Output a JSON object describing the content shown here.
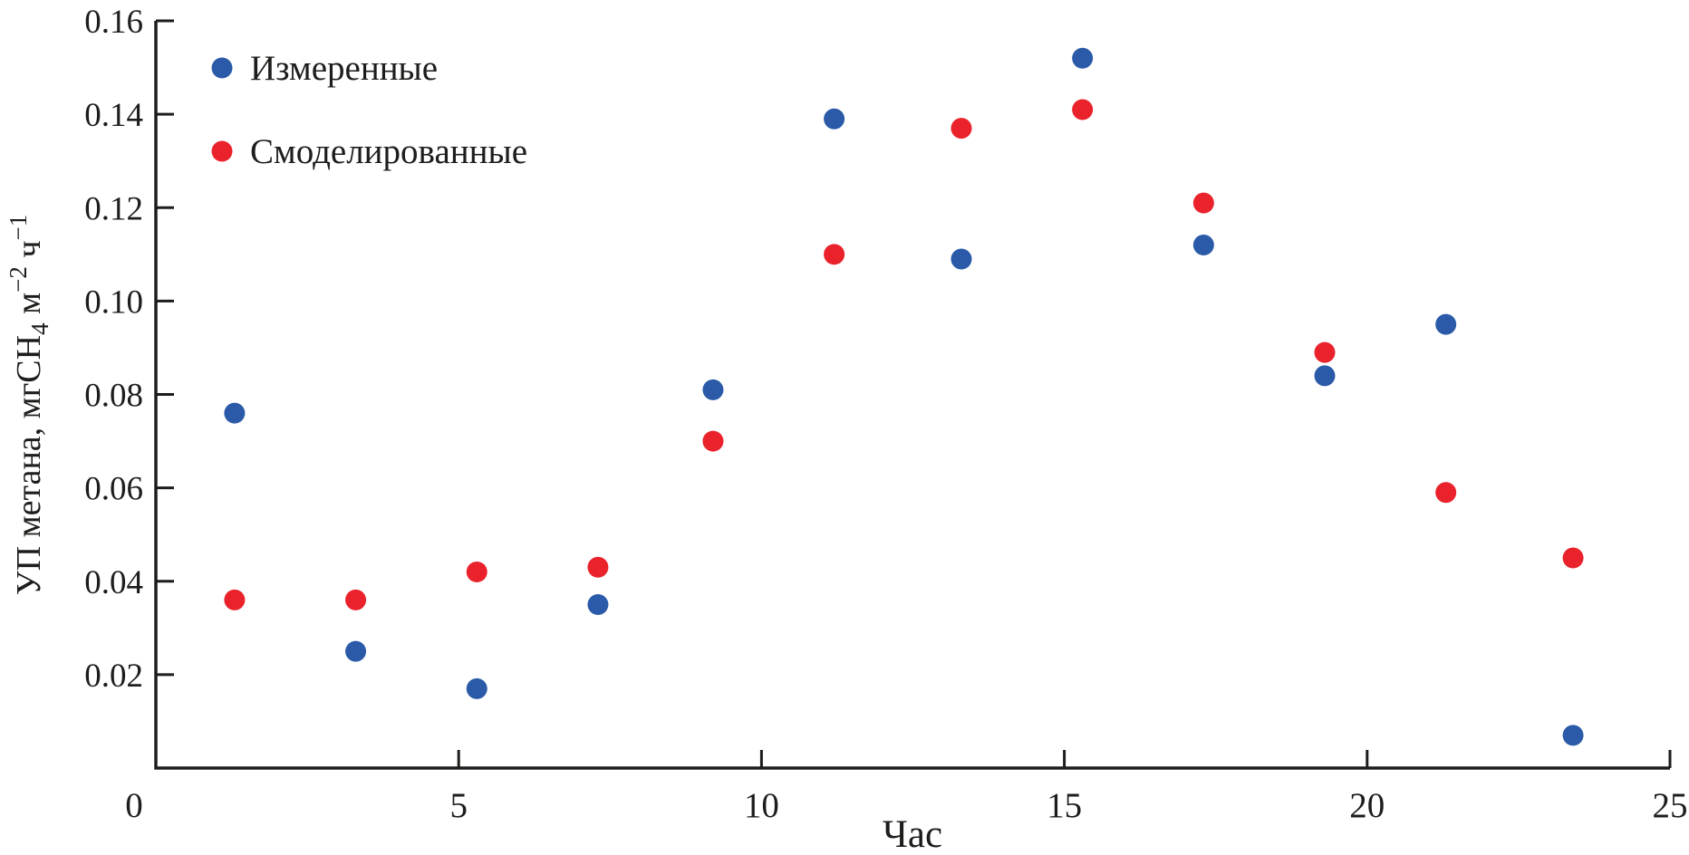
{
  "figure": {
    "background": "#ffffff",
    "ink_color": "#1d1d1b"
  },
  "chart_data": {
    "type": "scatter",
    "title": "",
    "xlabel": "Час",
    "ylabel": "УП метана, мгCH4 м−2 ч−1",
    "ylabel_parts": [
      {
        "t": "УП метана, мгCH",
        "pos": "n"
      },
      {
        "t": "4",
        "pos": "sub"
      },
      {
        "t": " м",
        "pos": "n"
      },
      {
        "t": "−2",
        "pos": "sup"
      },
      {
        "t": " ч",
        "pos": "n"
      },
      {
        "t": "−1",
        "pos": "sup"
      }
    ],
    "xlim": [
      0,
      25
    ],
    "ylim": [
      0,
      0.16
    ],
    "grid": false,
    "xticks": [
      {
        "v": 0,
        "label": "0"
      },
      {
        "v": 5,
        "label": "5"
      },
      {
        "v": 10,
        "label": "10"
      },
      {
        "v": 15,
        "label": "15"
      },
      {
        "v": 20,
        "label": "20"
      },
      {
        "v": 25,
        "label": "25"
      }
    ],
    "yticks": [
      {
        "v": 0.02,
        "label": "0.02"
      },
      {
        "v": 0.04,
        "label": "0.04"
      },
      {
        "v": 0.06,
        "label": "0.06"
      },
      {
        "v": 0.08,
        "label": "0.08"
      },
      {
        "v": 0.1,
        "label": "0.10"
      },
      {
        "v": 0.12,
        "label": "0.12"
      },
      {
        "v": 0.14,
        "label": "0.14"
      },
      {
        "v": 0.16,
        "label": "0.16"
      }
    ],
    "legend": {
      "position": "top-left",
      "items": [
        {
          "label": "Измеренные",
          "color": "#2A5AA8",
          "marker": "circle"
        },
        {
          "label": "Смоделированные",
          "color": "#E9222B",
          "marker": "circle"
        }
      ]
    },
    "series": [
      {
        "name": "Измеренные",
        "color": "#2A5AA8",
        "marker": "circle",
        "points": [
          [
            1.3,
            0.076
          ],
          [
            3.3,
            0.025
          ],
          [
            5.3,
            0.017
          ],
          [
            7.3,
            0.035
          ],
          [
            9.2,
            0.081
          ],
          [
            11.2,
            0.139
          ],
          [
            13.3,
            0.109
          ],
          [
            15.3,
            0.152
          ],
          [
            17.3,
            0.112
          ],
          [
            19.3,
            0.084
          ],
          [
            21.3,
            0.095
          ],
          [
            23.4,
            0.007
          ]
        ]
      },
      {
        "name": "Смоделированные",
        "color": "#E9222B",
        "marker": "circle",
        "points": [
          [
            1.3,
            0.036
          ],
          [
            3.3,
            0.036
          ],
          [
            5.3,
            0.042
          ],
          [
            7.3,
            0.043
          ],
          [
            9.2,
            0.07
          ],
          [
            11.2,
            0.11
          ],
          [
            13.3,
            0.137
          ],
          [
            15.3,
            0.141
          ],
          [
            17.3,
            0.121
          ],
          [
            19.3,
            0.089
          ],
          [
            21.3,
            0.059
          ],
          [
            23.4,
            0.045
          ]
        ]
      }
    ]
  }
}
